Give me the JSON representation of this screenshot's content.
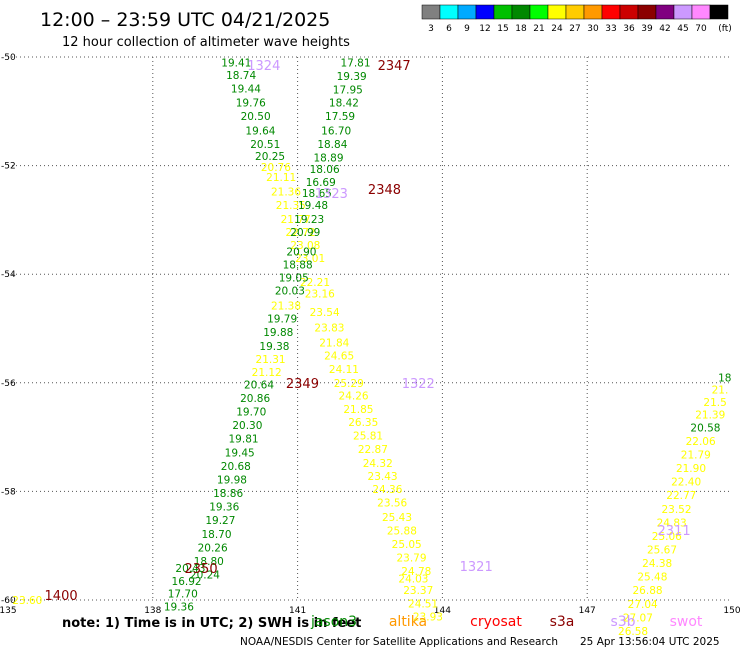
{
  "title": "12:00 – 23:59 UTC 04/21/2025",
  "subtitle": "12 hour collection of altimeter wave heights",
  "colorbar": {
    "colors": [
      "#808080",
      "#00ffff",
      "#00aaff",
      "#0000ff",
      "#00c000",
      "#008800",
      "#00ff00",
      "#ffff00",
      "#ffcc00",
      "#ff9900",
      "#ff0000",
      "#cc0000",
      "#8b0000",
      "#800080",
      "#cc99ff",
      "#ff88ff",
      "#000000"
    ],
    "labels": [
      "3",
      "6",
      "9",
      "12",
      "15",
      "18",
      "21",
      "24",
      "27",
      "30",
      "33",
      "36",
      "39",
      "42",
      "45",
      "70",
      "(ft)"
    ]
  },
  "note": "note:  1) Time is in UTC; 2) SWH is in feet",
  "satellites": [
    {
      "name": "jason3",
      "color": "#008800"
    },
    {
      "name": "altika",
      "color": "#ff9900"
    },
    {
      "name": "cryosat",
      "color": "#ff0000"
    },
    {
      "name": "s3a",
      "color": "#8b0000"
    },
    {
      "name": "s3b",
      "color": "#cc99ff"
    },
    {
      "name": "swot",
      "color": "#ff88ff"
    }
  ],
  "credit": "NOAA/NESDIS Center for Satellite Applications and Research",
  "timestamp": "25 Apr 13:56:04 UTC 2025",
  "chart_data": {
    "type": "scatter",
    "xlim": [
      135,
      150
    ],
    "ylim": [
      -60,
      -50
    ],
    "x_ticks": [
      "135",
      "138",
      "141",
      "144",
      "147",
      "150"
    ],
    "y_ticks": [
      "-50",
      "-52",
      "-54",
      "-56",
      "-58",
      "-60"
    ],
    "grid": true,
    "time_labels": [
      {
        "text": "1324",
        "lon": 140.3,
        "lat": -50.15,
        "color": "#cc99ff"
      },
      {
        "text": "2347",
        "lon": 143.0,
        "lat": -50.15,
        "color": "#8b0000"
      },
      {
        "text": "1323",
        "lon": 141.7,
        "lat": -52.5,
        "color": "#cc99ff"
      },
      {
        "text": "2348",
        "lon": 142.8,
        "lat": -52.43,
        "color": "#8b0000"
      },
      {
        "text": "2349",
        "lon": 141.1,
        "lat": -56.0,
        "color": "#8b0000"
      },
      {
        "text": "1322",
        "lon": 143.5,
        "lat": -56.0,
        "color": "#cc99ff"
      },
      {
        "text": "2350",
        "lon": 139.0,
        "lat": -59.41,
        "color": "#8b0000"
      },
      {
        "text": "1321",
        "lon": 144.7,
        "lat": -59.37,
        "color": "#cc99ff"
      },
      {
        "text": "1400",
        "lon": 136.1,
        "lat": -59.91,
        "color": "#8b0000"
      },
      {
        "text": "2311",
        "lon": 148.8,
        "lat": -58.71,
        "color": "#cc99ff"
      }
    ],
    "tracks": [
      {
        "name": "jason3 descending",
        "points": [
          {
            "text": "19.41",
            "lon": 139.73,
            "lat": -50.1,
            "color": "#008800"
          },
          {
            "text": "18.74",
            "lon": 139.83,
            "lat": -50.33,
            "color": "#008800"
          },
          {
            "text": "19.44",
            "lon": 139.93,
            "lat": -50.58,
            "color": "#008800"
          },
          {
            "text": "19.76",
            "lon": 140.03,
            "lat": -50.84,
            "color": "#008800"
          },
          {
            "text": "20.50",
            "lon": 140.13,
            "lat": -51.09,
            "color": "#008800"
          },
          {
            "text": "19.64",
            "lon": 140.23,
            "lat": -51.35,
            "color": "#008800"
          },
          {
            "text": "20.51",
            "lon": 140.33,
            "lat": -51.6,
            "color": "#008800"
          },
          {
            "text": "20.25",
            "lon": 140.43,
            "lat": -51.82,
            "color": "#008800"
          },
          {
            "text": "20.76",
            "lon": 140.55,
            "lat": -52.03,
            "color": "#ffff00"
          },
          {
            "text": "21.11",
            "lon": 140.66,
            "lat": -52.21,
            "color": "#ffff00"
          },
          {
            "text": "21.36",
            "lon": 140.76,
            "lat": -52.48,
            "color": "#ffff00"
          },
          {
            "text": "21.35",
            "lon": 140.86,
            "lat": -52.73,
            "color": "#ffff00"
          },
          {
            "text": "21.77",
            "lon": 140.96,
            "lat": -52.98,
            "color": "#ffff00"
          },
          {
            "text": "22.72",
            "lon": 141.06,
            "lat": -53.22,
            "color": "#ffff00"
          },
          {
            "text": "23.08",
            "lon": 141.16,
            "lat": -53.46,
            "color": "#ffff00"
          },
          {
            "text": "23.01",
            "lon": 141.26,
            "lat": -53.7,
            "color": "#ffff00"
          },
          {
            "text": "22.21",
            "lon": 141.36,
            "lat": -54.14,
            "color": "#ffff00"
          },
          {
            "text": "23.16",
            "lon": 141.46,
            "lat": -54.36,
            "color": "#ffff00"
          },
          {
            "text": "23.54",
            "lon": 141.56,
            "lat": -54.7,
            "color": "#ffff00"
          },
          {
            "text": "23.83",
            "lon": 141.66,
            "lat": -54.98,
            "color": "#ffff00"
          },
          {
            "text": "21.84",
            "lon": 141.76,
            "lat": -55.26,
            "color": "#ffff00"
          },
          {
            "text": "24.65",
            "lon": 141.86,
            "lat": -55.5,
            "color": "#ffff00"
          },
          {
            "text": "24.11",
            "lon": 141.96,
            "lat": -55.75,
            "color": "#ffff00"
          },
          {
            "text": "25.29",
            "lon": 142.06,
            "lat": -56.0,
            "color": "#ffff00"
          },
          {
            "text": "24.26",
            "lon": 142.16,
            "lat": -56.23,
            "color": "#ffff00"
          },
          {
            "text": "21.85",
            "lon": 142.26,
            "lat": -56.48,
            "color": "#ffff00"
          },
          {
            "text": "26.35",
            "lon": 142.36,
            "lat": -56.72,
            "color": "#ffff00"
          },
          {
            "text": "25.81",
            "lon": 142.46,
            "lat": -56.97,
            "color": "#ffff00"
          },
          {
            "text": "22.87",
            "lon": 142.56,
            "lat": -57.22,
            "color": "#ffff00"
          },
          {
            "text": "24.32",
            "lon": 142.66,
            "lat": -57.48,
            "color": "#ffff00"
          },
          {
            "text": "23.43",
            "lon": 142.76,
            "lat": -57.72,
            "color": "#ffff00"
          },
          {
            "text": "24.36",
            "lon": 142.86,
            "lat": -57.96,
            "color": "#ffff00"
          },
          {
            "text": "23.56",
            "lon": 142.96,
            "lat": -58.2,
            "color": "#ffff00"
          },
          {
            "text": "25.43",
            "lon": 143.06,
            "lat": -58.47,
            "color": "#ffff00"
          },
          {
            "text": "25.88",
            "lon": 143.16,
            "lat": -58.72,
            "color": "#ffff00"
          },
          {
            "text": "25.05",
            "lon": 143.26,
            "lat": -58.97,
            "color": "#ffff00"
          },
          {
            "text": "23.79",
            "lon": 143.36,
            "lat": -59.22,
            "color": "#ffff00"
          },
          {
            "text": "24.78",
            "lon": 143.46,
            "lat": -59.47,
            "color": "#ffff00"
          },
          {
            "text": "24.03",
            "lon": 143.4,
            "lat": -59.6,
            "color": "#ffff00"
          },
          {
            "text": "23.37",
            "lon": 143.5,
            "lat": -59.82,
            "color": "#ffff00"
          },
          {
            "text": "24.51",
            "lon": 143.6,
            "lat": -60.06,
            "color": "#ffff00"
          },
          {
            "text": "23.93",
            "lon": 143.7,
            "lat": -60.3,
            "color": "#ffff00"
          }
        ]
      },
      {
        "name": "jason3 ascending",
        "points": [
          {
            "text": "17.81",
            "lon": 142.2,
            "lat": -50.1,
            "color": "#008800"
          },
          {
            "text": "19.39",
            "lon": 142.12,
            "lat": -50.35,
            "color": "#008800"
          },
          {
            "text": "17.95",
            "lon": 142.04,
            "lat": -50.6,
            "color": "#008800"
          },
          {
            "text": "18.42",
            "lon": 141.96,
            "lat": -50.84,
            "color": "#008800"
          },
          {
            "text": "17.59",
            "lon": 141.88,
            "lat": -51.09,
            "color": "#008800"
          },
          {
            "text": "16.70",
            "lon": 141.8,
            "lat": -51.35,
            "color": "#008800"
          },
          {
            "text": "18.84",
            "lon": 141.72,
            "lat": -51.6,
            "color": "#008800"
          },
          {
            "text": "18.89",
            "lon": 141.64,
            "lat": -51.85,
            "color": "#008800"
          },
          {
            "text": "18.06",
            "lon": 141.56,
            "lat": -52.06,
            "color": "#008800"
          },
          {
            "text": "16.69",
            "lon": 141.48,
            "lat": -52.3,
            "color": "#008800"
          },
          {
            "text": "18.65",
            "lon": 141.4,
            "lat": -52.5,
            "color": "#008800"
          },
          {
            "text": "19.48",
            "lon": 141.32,
            "lat": -52.73,
            "color": "#008800"
          },
          {
            "text": "19.23",
            "lon": 141.24,
            "lat": -52.98,
            "color": "#008800"
          },
          {
            "text": "20.99",
            "lon": 141.16,
            "lat": -53.22,
            "color": "#008800"
          },
          {
            "text": "20.90",
            "lon": 141.08,
            "lat": -53.58,
            "color": "#008800"
          },
          {
            "text": "18.88",
            "lon": 141.0,
            "lat": -53.82,
            "color": "#008800"
          },
          {
            "text": "19.05",
            "lon": 140.92,
            "lat": -54.06,
            "color": "#008800"
          },
          {
            "text": "20.03",
            "lon": 140.84,
            "lat": -54.3,
            "color": "#008800"
          },
          {
            "text": "21.38",
            "lon": 140.76,
            "lat": -54.58,
            "color": "#ffff00"
          },
          {
            "text": "19.79",
            "lon": 140.68,
            "lat": -54.82,
            "color": "#008800"
          },
          {
            "text": "19.88",
            "lon": 140.6,
            "lat": -55.06,
            "color": "#008800"
          },
          {
            "text": "19.38",
            "lon": 140.52,
            "lat": -55.32,
            "color": "#008800"
          },
          {
            "text": "21.31",
            "lon": 140.44,
            "lat": -55.56,
            "color": "#ffff00"
          },
          {
            "text": "21.12",
            "lon": 140.36,
            "lat": -55.8,
            "color": "#ffff00"
          },
          {
            "text": "20.64",
            "lon": 140.2,
            "lat": -56.03,
            "color": "#008800"
          },
          {
            "text": "20.86",
            "lon": 140.12,
            "lat": -56.28,
            "color": "#008800"
          },
          {
            "text": "19.70",
            "lon": 140.04,
            "lat": -56.53,
            "color": "#008800"
          },
          {
            "text": "20.30",
            "lon": 139.96,
            "lat": -56.78,
            "color": "#008800"
          },
          {
            "text": "19.81",
            "lon": 139.88,
            "lat": -57.03,
            "color": "#008800"
          },
          {
            "text": "19.45",
            "lon": 139.8,
            "lat": -57.28,
            "color": "#008800"
          },
          {
            "text": "20.68",
            "lon": 139.72,
            "lat": -57.53,
            "color": "#008800"
          },
          {
            "text": "19.98",
            "lon": 139.64,
            "lat": -57.78,
            "color": "#008800"
          },
          {
            "text": "18.86",
            "lon": 139.56,
            "lat": -58.03,
            "color": "#008800"
          },
          {
            "text": "19.36",
            "lon": 139.48,
            "lat": -58.28,
            "color": "#008800"
          },
          {
            "text": "19.27",
            "lon": 139.4,
            "lat": -58.53,
            "color": "#008800"
          },
          {
            "text": "18.70",
            "lon": 139.32,
            "lat": -58.78,
            "color": "#008800"
          },
          {
            "text": "20.26",
            "lon": 139.24,
            "lat": -59.03,
            "color": "#008800"
          },
          {
            "text": "18.80",
            "lon": 139.16,
            "lat": -59.28,
            "color": "#008800"
          },
          {
            "text": "20.24",
            "lon": 139.08,
            "lat": -59.53,
            "color": "#008800"
          },
          {
            "text": "20.43",
            "lon": 138.78,
            "lat": -59.41,
            "color": "#008800"
          },
          {
            "text": "16.92",
            "lon": 138.7,
            "lat": -59.65,
            "color": "#008800"
          },
          {
            "text": "17.70",
            "lon": 138.62,
            "lat": -59.88,
            "color": "#008800"
          },
          {
            "text": "19.36",
            "lon": 138.54,
            "lat": -60.12,
            "color": "#008800"
          }
        ]
      },
      {
        "name": "edge left",
        "points": [
          {
            "text": "23.60",
            "lon": 135.4,
            "lat": -60.0,
            "color": "#ffff00"
          }
        ]
      },
      {
        "name": "east track",
        "points": [
          {
            "text": "18",
            "lon": 149.85,
            "lat": -55.9,
            "color": "#008800"
          },
          {
            "text": "21.",
            "lon": 149.75,
            "lat": -56.12,
            "color": "#ffff00"
          },
          {
            "text": "21.5",
            "lon": 149.65,
            "lat": -56.35,
            "color": "#ffff00"
          },
          {
            "text": "21.39",
            "lon": 149.55,
            "lat": -56.58,
            "color": "#ffff00"
          },
          {
            "text": "20.58",
            "lon": 149.45,
            "lat": -56.82,
            "color": "#008800"
          },
          {
            "text": "22.06",
            "lon": 149.35,
            "lat": -57.07,
            "color": "#ffff00"
          },
          {
            "text": "21.79",
            "lon": 149.25,
            "lat": -57.32,
            "color": "#ffff00"
          },
          {
            "text": "21.90",
            "lon": 149.15,
            "lat": -57.57,
            "color": "#ffff00"
          },
          {
            "text": "22.40",
            "lon": 149.05,
            "lat": -57.82,
            "color": "#ffff00"
          },
          {
            "text": "22.77",
            "lon": 148.95,
            "lat": -58.07,
            "color": "#ffff00"
          },
          {
            "text": "23.52",
            "lon": 148.85,
            "lat": -58.32,
            "color": "#ffff00"
          },
          {
            "text": "24.83",
            "lon": 148.75,
            "lat": -58.57,
            "color": "#ffff00"
          },
          {
            "text": "25.06",
            "lon": 148.65,
            "lat": -58.82,
            "color": "#ffff00"
          },
          {
            "text": "25.67",
            "lon": 148.55,
            "lat": -59.07,
            "color": "#ffff00"
          },
          {
            "text": "24.38",
            "lon": 148.45,
            "lat": -59.32,
            "color": "#ffff00"
          },
          {
            "text": "25.48",
            "lon": 148.35,
            "lat": -59.57,
            "color": "#ffff00"
          },
          {
            "text": "26.88",
            "lon": 148.25,
            "lat": -59.82,
            "color": "#ffff00"
          },
          {
            "text": "27.04",
            "lon": 148.15,
            "lat": -60.07,
            "color": "#ffff00"
          },
          {
            "text": "27.07",
            "lon": 148.05,
            "lat": -60.32,
            "color": "#ffff00"
          },
          {
            "text": "26.58",
            "lon": 147.95,
            "lat": -60.57,
            "color": "#ffff00"
          }
        ]
      }
    ]
  }
}
